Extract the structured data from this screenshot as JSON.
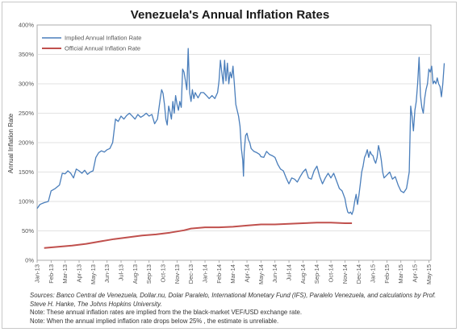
{
  "chart_data": {
    "type": "line",
    "title": "Venezuela's Annual Inflation Rates",
    "xlabel": "",
    "ylabel": "Annual Inflation Rate",
    "ylim": [
      0,
      400
    ],
    "yticks": [
      "0%",
      "50%",
      "100%",
      "150%",
      "200%",
      "250%",
      "300%",
      "350%",
      "400%"
    ],
    "xticks": [
      "Jan-13",
      "Feb-13",
      "Mar-13",
      "Apr-13",
      "May-13",
      "Jun-13",
      "Jul-13",
      "Aug-13",
      "Sep-13",
      "Oct-13",
      "Nov-13",
      "Dec-13",
      "Jan-14",
      "Feb-14",
      "Mar-14",
      "Apr-14",
      "May-14",
      "Jun-14",
      "Jul-14",
      "Aug-14",
      "Sep-14",
      "Oct-14",
      "Nov-14",
      "Dec-14",
      "Jan-15",
      "Feb-15",
      "Mar-15",
      "Apr-15",
      "May-15"
    ],
    "grid": true,
    "legend_position": "top-left",
    "series": [
      {
        "name": "Implied Annual Inflation Rate",
        "color": "#4a7ebb",
        "points": [
          [
            0.0,
            88
          ],
          [
            0.2,
            95
          ],
          [
            0.5,
            98
          ],
          [
            0.8,
            100
          ],
          [
            1.0,
            118
          ],
          [
            1.3,
            122
          ],
          [
            1.6,
            128
          ],
          [
            1.8,
            148
          ],
          [
            2.0,
            147
          ],
          [
            2.2,
            152
          ],
          [
            2.4,
            148
          ],
          [
            2.6,
            140
          ],
          [
            2.8,
            155
          ],
          [
            3.0,
            152
          ],
          [
            3.2,
            148
          ],
          [
            3.4,
            153
          ],
          [
            3.6,
            146
          ],
          [
            3.8,
            150
          ],
          [
            4.0,
            152
          ],
          [
            4.2,
            175
          ],
          [
            4.4,
            183
          ],
          [
            4.6,
            186
          ],
          [
            4.8,
            184
          ],
          [
            5.0,
            188
          ],
          [
            5.2,
            190
          ],
          [
            5.4,
            200
          ],
          [
            5.6,
            240
          ],
          [
            5.8,
            236
          ],
          [
            6.0,
            245
          ],
          [
            6.2,
            240
          ],
          [
            6.4,
            246
          ],
          [
            6.6,
            250
          ],
          [
            6.8,
            245
          ],
          [
            7.0,
            240
          ],
          [
            7.2,
            248
          ],
          [
            7.4,
            243
          ],
          [
            7.6,
            246
          ],
          [
            7.8,
            250
          ],
          [
            8.0,
            245
          ],
          [
            8.2,
            248
          ],
          [
            8.4,
            232
          ],
          [
            8.6,
            240
          ],
          [
            8.8,
            275
          ],
          [
            8.9,
            290
          ],
          [
            9.0,
            284
          ],
          [
            9.1,
            265
          ],
          [
            9.2,
            240
          ],
          [
            9.3,
            230
          ],
          [
            9.4,
            262
          ],
          [
            9.5,
            252
          ],
          [
            9.6,
            240
          ],
          [
            9.7,
            270
          ],
          [
            9.8,
            250
          ],
          [
            9.9,
            280
          ],
          [
            10.0,
            265
          ],
          [
            10.1,
            255
          ],
          [
            10.2,
            270
          ],
          [
            10.3,
            260
          ],
          [
            10.4,
            325
          ],
          [
            10.5,
            320
          ],
          [
            10.6,
            305
          ],
          [
            10.7,
            290
          ],
          [
            10.8,
            360
          ],
          [
            10.9,
            285
          ],
          [
            11.0,
            270
          ],
          [
            11.1,
            290
          ],
          [
            11.2,
            275
          ],
          [
            11.3,
            285
          ],
          [
            11.5,
            276
          ],
          [
            11.7,
            285
          ],
          [
            11.9,
            285
          ],
          [
            12.1,
            280
          ],
          [
            12.3,
            275
          ],
          [
            12.5,
            280
          ],
          [
            12.7,
            275
          ],
          [
            12.9,
            285
          ],
          [
            13.0,
            305
          ],
          [
            13.1,
            340
          ],
          [
            13.2,
            320
          ],
          [
            13.3,
            300
          ],
          [
            13.4,
            340
          ],
          [
            13.5,
            305
          ],
          [
            13.6,
            335
          ],
          [
            13.7,
            300
          ],
          [
            13.8,
            320
          ],
          [
            13.9,
            310
          ],
          [
            14.0,
            330
          ],
          [
            14.1,
            300
          ],
          [
            14.2,
            265
          ],
          [
            14.3,
            255
          ],
          [
            14.4,
            245
          ],
          [
            14.5,
            228
          ],
          [
            14.6,
            190
          ],
          [
            14.7,
            170
          ],
          [
            14.75,
            143
          ],
          [
            14.8,
            185
          ],
          [
            14.9,
            212
          ],
          [
            15.0,
            216
          ],
          [
            15.1,
            205
          ],
          [
            15.2,
            200
          ],
          [
            15.3,
            190
          ],
          [
            15.5,
            185
          ],
          [
            15.7,
            183
          ],
          [
            15.9,
            180
          ],
          [
            16.0,
            176
          ],
          [
            16.2,
            175
          ],
          [
            16.4,
            185
          ],
          [
            16.6,
            180
          ],
          [
            16.8,
            178
          ],
          [
            17.0,
            175
          ],
          [
            17.2,
            163
          ],
          [
            17.4,
            155
          ],
          [
            17.6,
            152
          ],
          [
            17.8,
            140
          ],
          [
            18.0,
            130
          ],
          [
            18.2,
            140
          ],
          [
            18.4,
            138
          ],
          [
            18.6,
            133
          ],
          [
            18.8,
            142
          ],
          [
            19.0,
            150
          ],
          [
            19.2,
            155
          ],
          [
            19.4,
            140
          ],
          [
            19.6,
            138
          ],
          [
            19.8,
            152
          ],
          [
            20.0,
            160
          ],
          [
            20.2,
            142
          ],
          [
            20.4,
            130
          ],
          [
            20.6,
            140
          ],
          [
            20.8,
            148
          ],
          [
            21.0,
            140
          ],
          [
            21.2,
            148
          ],
          [
            21.4,
            135
          ],
          [
            21.6,
            122
          ],
          [
            21.8,
            118
          ],
          [
            22.0,
            105
          ],
          [
            22.1,
            92
          ],
          [
            22.2,
            82
          ],
          [
            22.3,
            80
          ],
          [
            22.4,
            82
          ],
          [
            22.5,
            78
          ],
          [
            22.6,
            85
          ],
          [
            22.7,
            100
          ],
          [
            22.8,
            112
          ],
          [
            22.9,
            95
          ],
          [
            23.0,
            110
          ],
          [
            23.1,
            130
          ],
          [
            23.2,
            150
          ],
          [
            23.3,
            160
          ],
          [
            23.4,
            175
          ],
          [
            23.5,
            180
          ],
          [
            23.6,
            188
          ],
          [
            23.7,
            175
          ],
          [
            23.8,
            185
          ],
          [
            23.9,
            180
          ],
          [
            24.0,
            178
          ],
          [
            24.1,
            170
          ],
          [
            24.2,
            165
          ],
          [
            24.3,
            175
          ],
          [
            24.4,
            195
          ],
          [
            24.5,
            185
          ],
          [
            24.6,
            170
          ],
          [
            24.7,
            150
          ],
          [
            24.8,
            140
          ],
          [
            25.0,
            145
          ],
          [
            25.2,
            150
          ],
          [
            25.4,
            138
          ],
          [
            25.6,
            142
          ],
          [
            25.8,
            128
          ],
          [
            26.0,
            118
          ],
          [
            26.2,
            115
          ],
          [
            26.4,
            122
          ],
          [
            26.6,
            150
          ],
          [
            26.7,
            262
          ],
          [
            26.8,
            245
          ],
          [
            26.9,
            220
          ],
          [
            27.0,
            255
          ],
          [
            27.1,
            270
          ],
          [
            27.2,
            300
          ],
          [
            27.3,
            345
          ],
          [
            27.4,
            280
          ],
          [
            27.5,
            260
          ],
          [
            27.6,
            250
          ],
          [
            27.7,
            275
          ],
          [
            27.8,
            290
          ],
          [
            27.9,
            300
          ],
          [
            28.0,
            325
          ],
          [
            28.1,
            320
          ],
          [
            28.2,
            330
          ],
          [
            28.3,
            300
          ],
          [
            28.4,
            305
          ],
          [
            28.5,
            300
          ],
          [
            28.6,
            310
          ],
          [
            28.7,
            300
          ],
          [
            28.8,
            295
          ],
          [
            28.9,
            278
          ],
          [
            29.0,
            300
          ],
          [
            29.1,
            335
          ]
        ]
      },
      {
        "name": "Official Annual Inflation Rate",
        "color": "#c0504d",
        "points": [
          [
            0.5,
            21
          ],
          [
            1.5,
            23
          ],
          [
            2.5,
            25
          ],
          [
            3.5,
            28
          ],
          [
            4.5,
            32
          ],
          [
            5.5,
            36
          ],
          [
            6.5,
            39
          ],
          [
            7.5,
            42
          ],
          [
            8.5,
            44
          ],
          [
            9.5,
            47
          ],
          [
            10.5,
            51
          ],
          [
            11.0,
            54
          ],
          [
            12.0,
            56
          ],
          [
            13.0,
            56
          ],
          [
            14.0,
            57
          ],
          [
            15.0,
            59
          ],
          [
            16.0,
            61
          ],
          [
            17.0,
            61
          ],
          [
            18.0,
            62
          ],
          [
            19.0,
            63
          ],
          [
            20.0,
            64
          ],
          [
            21.0,
            64
          ],
          [
            22.0,
            63
          ],
          [
            22.5,
            63
          ]
        ]
      }
    ]
  },
  "notes": {
    "sources": "Sources: Banco Central de Venezuela, Dollar.nu, Dolar Paralelo, International Monetary Fund (IFS), Paralelo Venezuela, and calculations by Prof. Steve H. Hanke, The Johns Hopkins University.",
    "note1": "Note: These annual inflation rates are implied from the the black-market VEF/USD exchange rate.",
    "note2": "Note: When the annual implied inflation rate drops below 25% , the estimate is unreliable."
  }
}
